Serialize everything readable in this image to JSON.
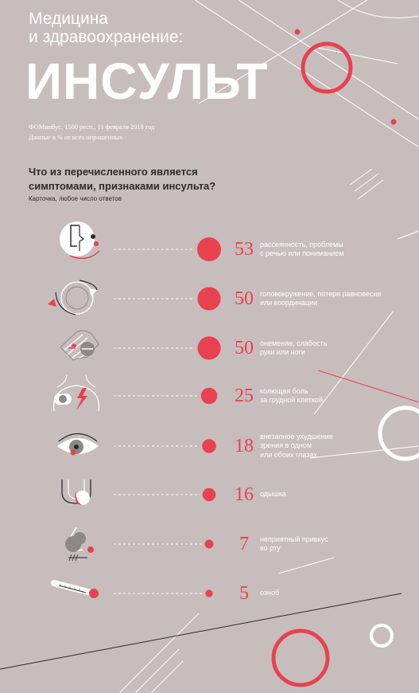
{
  "header": {
    "subtitle_line1": "Медицина",
    "subtitle_line2": "и здравоохранение:",
    "title": "ИНСУЛЬТ",
    "source_line1": "ФОМнибус, 1500 респ., 11 февраля 2018 год",
    "source_line2": "Данные в % от всех опрошенных"
  },
  "question": {
    "line1": "Что из перечисленного является",
    "line2": "симптомами, признаками инсульта?",
    "note": "Карточка, любое число ответов"
  },
  "colors": {
    "background": "#c7bdbd",
    "accent": "#e8414f",
    "dark": "#2b2a2e",
    "white": "#ffffff"
  },
  "chart_data": {
    "type": "bubble",
    "unit": "%",
    "items": [
      {
        "label_line1": "рассеянность, проблемы",
        "label_line2": "с речью или пониманием",
        "label_line3": "",
        "value": 53,
        "value_text": "53",
        "icon": "face-profile-icon"
      },
      {
        "label_line1": "головокружение, потеря равновесия",
        "label_line2": "или координации",
        "label_line3": "",
        "value": 50,
        "value_text": "50",
        "icon": "spinning-arrows-icon"
      },
      {
        "label_line1": "онемение, слабость",
        "label_line2": "руки или ноги",
        "label_line3": "",
        "value": 50,
        "value_text": "50",
        "icon": "hand-icon"
      },
      {
        "label_line1": "колющая боль",
        "label_line2": "за грудной клеткой",
        "label_line3": "",
        "value": 25,
        "value_text": "25",
        "icon": "chest-pain-icon"
      },
      {
        "label_line1": "внезапное ухудшение",
        "label_line2": "зрения в одном",
        "label_line3": "или обоих глазах",
        "value": 18,
        "value_text": "18",
        "icon": "eye-icon"
      },
      {
        "label_line1": "одышка",
        "label_line2": "",
        "label_line3": "",
        "value": 16,
        "value_text": "16",
        "icon": "lungs-icon"
      },
      {
        "label_line1": "неприятный привкус",
        "label_line2": "во рту",
        "label_line3": "",
        "value": 7,
        "value_text": "7",
        "icon": "nose-mouth-icon"
      },
      {
        "label_line1": "озноб",
        "label_line2": "",
        "label_line3": "",
        "value": 5,
        "value_text": "5",
        "icon": "thermometer-icon"
      }
    ]
  }
}
